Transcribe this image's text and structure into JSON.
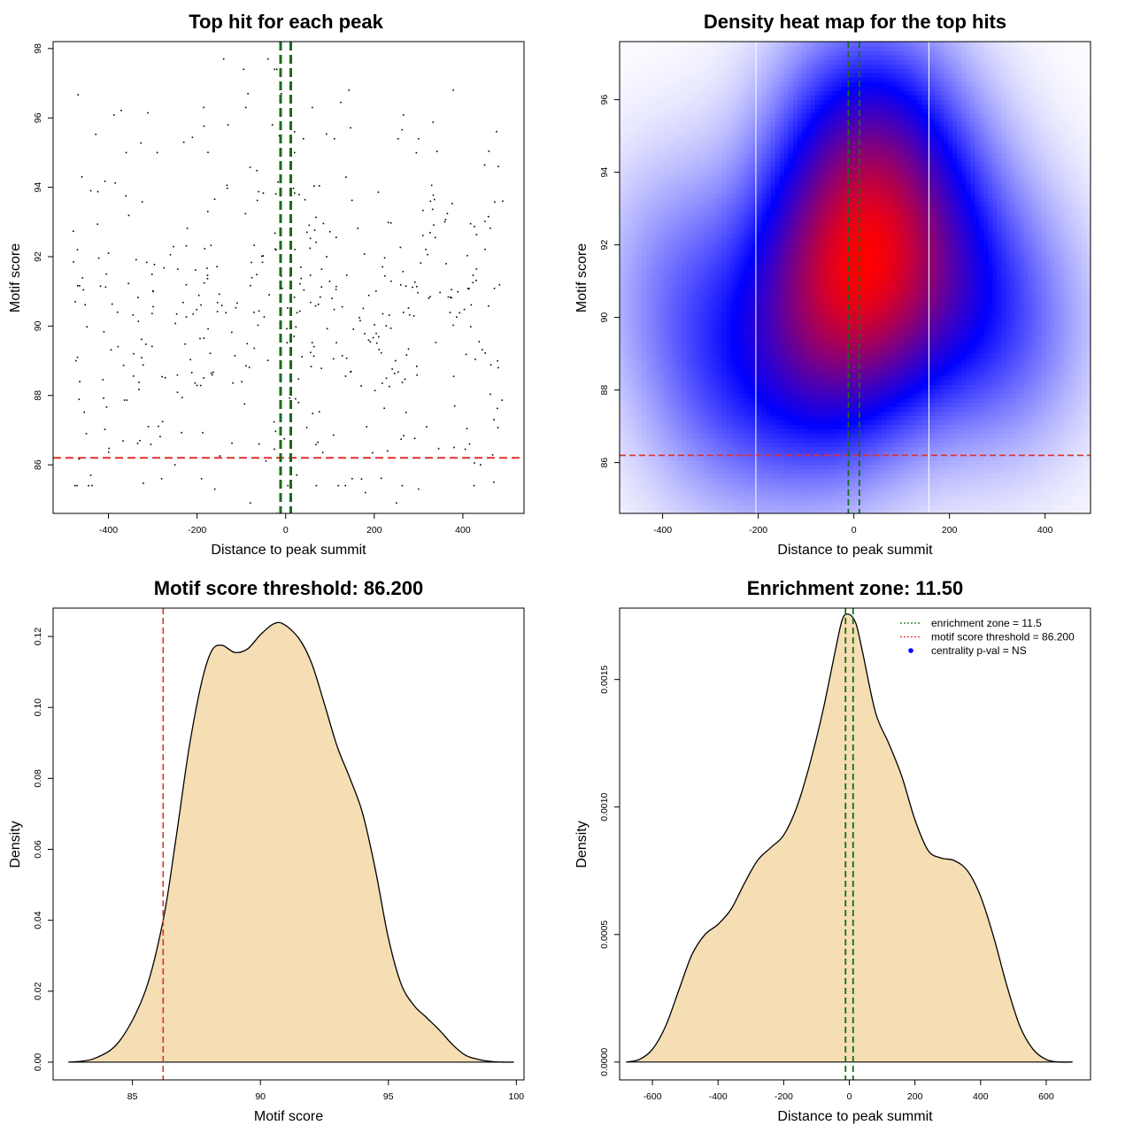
{
  "colors": {
    "scatter_point": "#000000",
    "threshold_line": "#e0302a",
    "zone_line": "#1a6b1a",
    "density_fill": "#f5deb3",
    "density_line": "#000000",
    "heat_low": "#ffffff",
    "heat_mid": "#0000ff",
    "heat_high": "#ff0000",
    "heat_bounds": "#ffffff",
    "legend_dot": "#0000ff"
  },
  "chart_data": [
    {
      "type": "scatter",
      "title": "Top hit for each peak",
      "xlabel": "Distance to peak summit",
      "ylabel": "Motif score",
      "xlim": [
        -525,
        538
      ],
      "ylim": [
        84.6,
        98.2
      ],
      "xticks": [
        -400,
        -200,
        0,
        200,
        400
      ],
      "yticks": [
        86,
        88,
        90,
        92,
        94,
        96,
        98
      ],
      "hline": 86.2,
      "vlines": [
        -11.5,
        11.5
      ],
      "seed": 7,
      "point_count": 460,
      "points": [
        [
          -140,
          97.7
        ],
        [
          -40,
          97.7
        ],
        [
          -95,
          97.4
        ],
        [
          -25,
          97.4
        ],
        [
          -20,
          97.4
        ],
        [
          -85,
          96.7
        ],
        [
          -10,
          96.7
        ],
        [
          -90,
          96.3
        ],
        [
          -185,
          96.3
        ],
        [
          60,
          96.3
        ],
        [
          -130,
          95.8
        ],
        [
          -30,
          95.8
        ],
        [
          20,
          95.6
        ],
        [
          -230,
          95.3
        ],
        [
          40,
          95.4
        ],
        [
          110,
          95.4
        ],
        [
          300,
          95.4
        ],
        [
          -360,
          95.0
        ],
        [
          -290,
          95.0
        ],
        [
          20,
          95.0
        ],
        [
          -400,
          92.1
        ],
        [
          -470,
          92.2
        ],
        [
          -460,
          94.3
        ],
        [
          -440,
          93.9
        ],
        [
          480,
          94.6
        ],
        [
          -475,
          90.7
        ],
        [
          -470,
          89.1
        ],
        [
          -465,
          88.4
        ],
        [
          -450,
          86.9
        ],
        [
          -445,
          85.4
        ],
        [
          -440,
          85.7
        ],
        [
          480,
          88.8
        ],
        [
          490,
          93.6
        ],
        [
          470,
          85.5
        ],
        [
          250,
          84.9
        ],
        [
          -20,
          84.6
        ],
        [
          -80,
          84.9
        ],
        [
          180,
          85.2
        ],
        [
          -160,
          85.3
        ],
        [
          300,
          85.3
        ],
        [
          210,
          86.2
        ],
        [
          -250,
          86.0
        ],
        [
          -280,
          85.6
        ],
        [
          -60,
          86.6
        ],
        [
          230,
          86.4
        ],
        [
          150,
          85.6
        ],
        [
          -190,
          85.6
        ],
        [
          380,
          86.5
        ],
        [
          440,
          86.0
        ],
        [
          470,
          87.3
        ]
      ]
    },
    {
      "type": "heatmap",
      "title": "Density heat map for the top hits",
      "xlabel": "Distance to peak summit",
      "ylabel": "Motif score",
      "xlim": [
        -490,
        495
      ],
      "ylim": [
        84.6,
        97.6
      ],
      "xticks": [
        -400,
        -200,
        0,
        200,
        400
      ],
      "yticks": [
        86,
        88,
        90,
        92,
        94,
        96
      ],
      "hline": 86.2,
      "vlines": [
        -11.5,
        11.5
      ],
      "bounds": [
        -205,
        157
      ],
      "density_peaks": [
        {
          "x": -40,
          "y": 91.2,
          "weight": 1.0
        },
        {
          "x": 30,
          "y": 94.5,
          "weight": 0.85
        },
        {
          "x": 90,
          "y": 90.8,
          "weight": 0.65
        },
        {
          "x": -60,
          "y": 88.5,
          "weight": 0.45
        },
        {
          "x": -250,
          "y": 88.2,
          "weight": 0.35
        },
        {
          "x": 300,
          "y": 89.8,
          "weight": 0.4
        },
        {
          "x": 150,
          "y": 92.5,
          "weight": 0.35
        },
        {
          "x": -350,
          "y": 91.0,
          "weight": 0.25
        }
      ]
    },
    {
      "type": "area",
      "title": "Motif score threshold: 86.200",
      "xlabel": "Motif score",
      "ylabel": "Density",
      "xlim": [
        81.9,
        100.3
      ],
      "ylim": [
        -0.005,
        0.128
      ],
      "xticks": [
        85,
        90,
        95,
        100
      ],
      "yticks": [
        0.0,
        0.02,
        0.04,
        0.06,
        0.08,
        0.1,
        0.12
      ],
      "ytick_labels": [
        "0.00",
        "0.02",
        "0.04",
        "0.06",
        "0.08",
        "0.10",
        "0.12"
      ],
      "vlines": [
        86.2
      ],
      "x": [
        82.5,
        83.5,
        84.5,
        85.5,
        86.2,
        86.7,
        87.2,
        87.7,
        88.1,
        88.5,
        89.0,
        89.5,
        90.0,
        90.5,
        90.9,
        91.5,
        92.0,
        92.5,
        93.0,
        93.5,
        94.0,
        94.5,
        95.0,
        95.5,
        96.0,
        96.5,
        97.0,
        97.5,
        98.0,
        98.5,
        99.0,
        99.5,
        99.9
      ],
      "y": [
        0.0,
        0.001,
        0.006,
        0.02,
        0.04,
        0.063,
        0.088,
        0.107,
        0.116,
        0.1175,
        0.1155,
        0.1165,
        0.1205,
        0.1235,
        0.1235,
        0.1195,
        0.1125,
        0.101,
        0.089,
        0.08,
        0.07,
        0.054,
        0.035,
        0.022,
        0.016,
        0.0125,
        0.009,
        0.005,
        0.002,
        0.0008,
        0.0002,
        0.0,
        0.0
      ]
    },
    {
      "type": "area",
      "title": "Enrichment zone: 11.50",
      "xlabel": "Distance to peak summit",
      "ylabel": "Density",
      "xlim": [
        -700,
        735
      ],
      "ylim": [
        -7e-05,
        0.00178
      ],
      "xticks": [
        -600,
        -400,
        -200,
        0,
        200,
        400,
        600
      ],
      "yticks": [
        0.0,
        0.0005,
        0.001,
        0.0015
      ],
      "ytick_labels": [
        "0.0000",
        "0.0005",
        "0.0010",
        "0.0015"
      ],
      "vlines": [
        -11.5,
        11.5
      ],
      "x": [
        -680,
        -640,
        -600,
        -560,
        -520,
        -480,
        -440,
        -400,
        -360,
        -320,
        -280,
        -240,
        -200,
        -160,
        -120,
        -80,
        -40,
        -20,
        0,
        20,
        40,
        80,
        120,
        160,
        200,
        240,
        280,
        320,
        360,
        400,
        440,
        480,
        520,
        560,
        600,
        640,
        680
      ],
      "y": [
        0.0,
        1e-05,
        5e-05,
        0.00014,
        0.00028,
        0.00042,
        0.0005,
        0.00054,
        0.0006,
        0.0007,
        0.00079,
        0.00084,
        0.00089,
        0.001,
        0.00117,
        0.00138,
        0.00163,
        0.00174,
        0.001755,
        0.00172,
        0.00161,
        0.00137,
        0.00125,
        0.00112,
        0.00095,
        0.00083,
        0.0008,
        0.00079,
        0.00075,
        0.00065,
        0.00049,
        0.0003,
        0.00014,
        5e-05,
        1e-05,
        0.0,
        0.0
      ],
      "legend": [
        {
          "label": "enrichment zone = 11.5",
          "kind": "dotted-line",
          "color_key": "zone_line"
        },
        {
          "label": "motif score threshold = 86.200",
          "kind": "dotted-line",
          "color_key": "threshold_line"
        },
        {
          "label": "centrality p-val = NS",
          "kind": "dot",
          "color_key": "legend_dot"
        }
      ]
    }
  ]
}
